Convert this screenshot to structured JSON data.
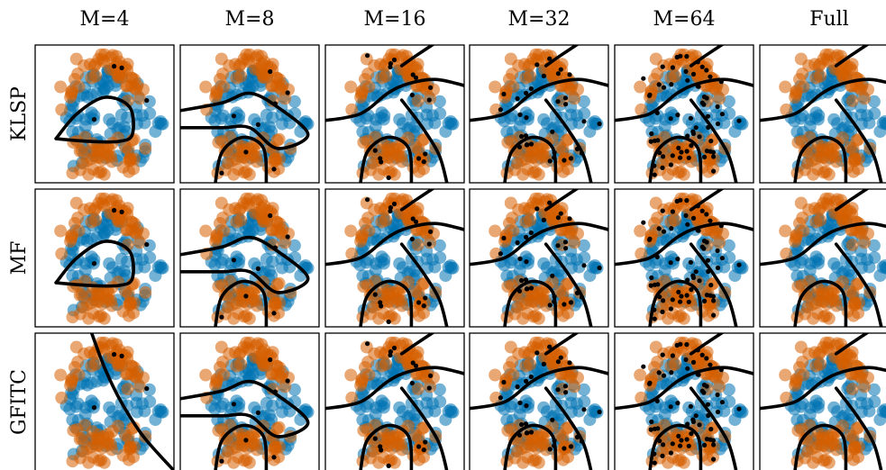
{
  "chart_data": {
    "type": "scatter",
    "title": "",
    "columns": [
      "M=4",
      "M=8",
      "M=16",
      "M=32",
      "M=64",
      "Full"
    ],
    "rows": [
      "KLSP",
      "MF",
      "GFITC"
    ],
    "class_colors": {
      "class_0": "#0072b2",
      "class_1": "#d55e00"
    },
    "boundary_color": "#000000",
    "inducing_point_color": "#000000",
    "inducing_points_per_column": [
      4,
      8,
      16,
      32,
      64,
      0
    ],
    "xlim": [
      0,
      1
    ],
    "ylim": [
      0,
      1
    ],
    "axes_ticks": false
  }
}
